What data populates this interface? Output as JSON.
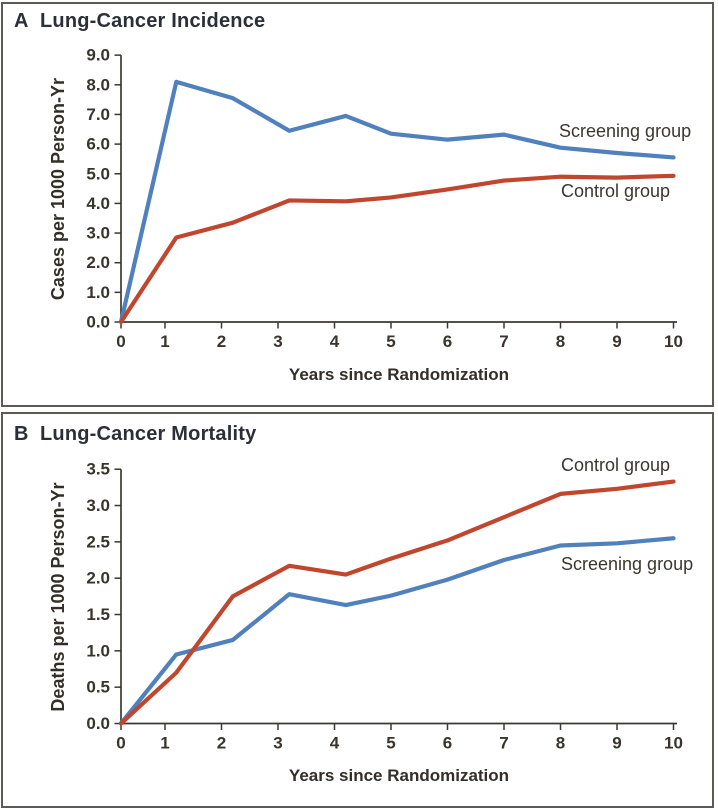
{
  "figure": {
    "background": "#ffffff",
    "border_color": "#5d5a56",
    "axis_color": "#3d3831",
    "text_color": "#39342d"
  },
  "chart_data": [
    {
      "type": "line",
      "panel_letter": "A",
      "title": "Lung-Cancer Incidence",
      "xlabel": "Years since Randomization",
      "ylabel": "Cases per 1000 Person-Yr",
      "xlim": [
        0,
        10
      ],
      "ylim": [
        0,
        9
      ],
      "grid": false,
      "legend_position": "inline-right",
      "xtick_labels": [
        "0",
        "1",
        "2",
        "3",
        "4",
        "5",
        "6",
        "7",
        "8",
        "9",
        "10"
      ],
      "xtick_values": [
        0,
        1,
        2,
        3,
        4,
        5,
        6,
        7,
        8,
        9,
        10
      ],
      "ytick_labels": [
        "0.0",
        "1.0",
        "2.0",
        "3.0",
        "4.0",
        "5.0",
        "6.0",
        "7.0",
        "8.0",
        "9.0"
      ],
      "ytick_values": [
        0,
        1,
        2,
        3,
        4,
        5,
        6,
        7,
        8,
        9
      ],
      "x": [
        0,
        1.2,
        2.2,
        3.2,
        4.2,
        5,
        6,
        7,
        8,
        9,
        10
      ],
      "series": [
        {
          "name": "Screening group",
          "color": "#5081bd",
          "values": [
            0,
            8.1,
            7.55,
            6.45,
            6.95,
            6.35,
            6.15,
            6.32,
            5.88,
            5.7,
            5.55
          ]
        },
        {
          "name": "Control group",
          "color": "#c0462e",
          "values": [
            0,
            2.85,
            3.35,
            4.1,
            4.07,
            4.2,
            4.47,
            4.77,
            4.9,
            4.87,
            4.93
          ]
        }
      ]
    },
    {
      "type": "line",
      "panel_letter": "B",
      "title": "Lung-Cancer Mortality",
      "xlabel": "Years since Randomization",
      "ylabel": "Deaths per 1000 Person-Yr",
      "xlim": [
        0,
        10
      ],
      "ylim": [
        0,
        3.5
      ],
      "grid": false,
      "legend_position": "inline-right",
      "xtick_labels": [
        "0",
        "1",
        "2",
        "3",
        "4",
        "5",
        "6",
        "7",
        "8",
        "9",
        "10"
      ],
      "xtick_values": [
        0,
        1,
        2,
        3,
        4,
        5,
        6,
        7,
        8,
        9,
        10
      ],
      "ytick_labels": [
        "0.0",
        "0.5",
        "1.0",
        "1.5",
        "2.0",
        "2.5",
        "3.0",
        "3.5"
      ],
      "ytick_values": [
        0,
        0.5,
        1,
        1.5,
        2,
        2.5,
        3,
        3.5
      ],
      "x": [
        0,
        1.2,
        2.2,
        3.2,
        4.2,
        5,
        6,
        7,
        8,
        9,
        10
      ],
      "series": [
        {
          "name": "Screening group",
          "color": "#5081bd",
          "values": [
            0,
            0.95,
            1.15,
            1.78,
            1.63,
            1.76,
            1.98,
            2.25,
            2.45,
            2.48,
            2.55
          ]
        },
        {
          "name": "Control group",
          "color": "#c0462e",
          "values": [
            0,
            0.7,
            1.75,
            2.17,
            2.05,
            2.27,
            2.52,
            2.84,
            3.16,
            3.23,
            3.33
          ]
        }
      ]
    }
  ]
}
